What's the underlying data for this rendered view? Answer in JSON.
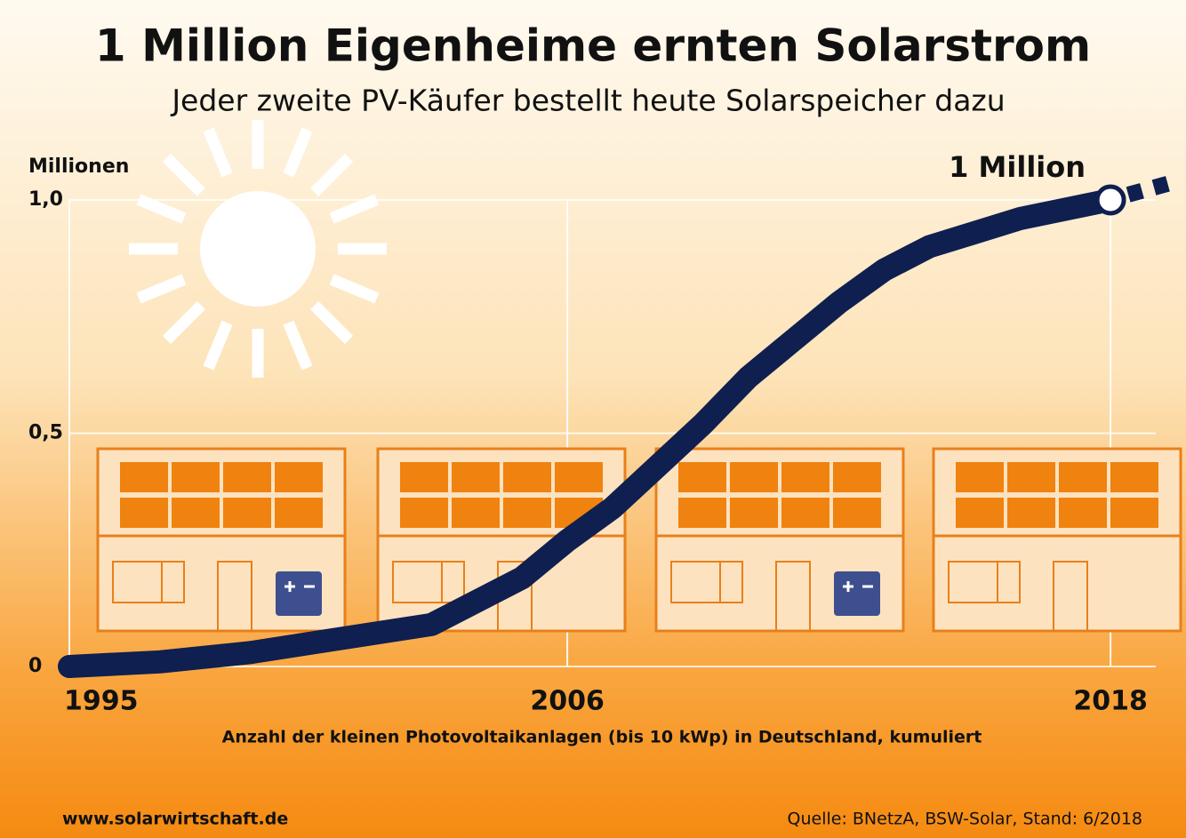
{
  "chart_data": {
    "type": "line",
    "title": "1 Million Eigenheime ernten Solarstrom",
    "subtitle": "Jeder zweite PV-Käufer bestellt heute Solarspeicher dazu",
    "y_axis_label": "Millionen",
    "x_axis_label": "Anzahl der kleinen Photovoltaikanlagen (bis 10 kWp) in Deutschland, kumuliert",
    "annotation": "1 Million",
    "website": "www.solarwirtschaft.de",
    "source": "Quelle: BNetzA, BSW-Solar, Stand: 6/2018",
    "x": [
      1995,
      1997,
      1999,
      2001,
      2003,
      2005,
      2006,
      2007,
      2008,
      2009,
      2010,
      2011,
      2012,
      2013,
      2014,
      2015,
      2016,
      2017,
      2018
    ],
    "series": [
      {
        "color": "#0f1f4f",
        "values": [
          0,
          0.01,
          0.03,
          0.06,
          0.09,
          0.19,
          0.27,
          0.34,
          0.43,
          0.52,
          0.62,
          0.7,
          0.78,
          0.85,
          0.9,
          0.93,
          0.96,
          0.98,
          1.0
        ]
      }
    ],
    "xlim": [
      1995,
      2019
    ],
    "ylim": [
      0,
      1
    ],
    "xticks": [
      1995,
      2006,
      2018
    ],
    "yticks": [
      0,
      {
        "value": 0.5,
        "label": "0,5"
      },
      {
        "value": 1,
        "label": "1,0"
      }
    ],
    "grid": true
  }
}
